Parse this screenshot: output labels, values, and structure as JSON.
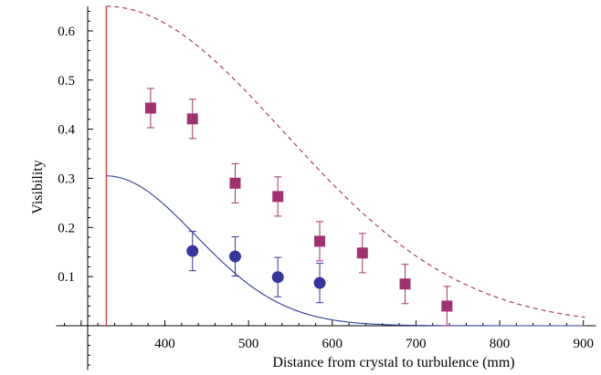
{
  "chart_data": {
    "type": "scatter",
    "title": "",
    "xlabel": "Distance from crystal to turbulence  (mm)",
    "ylabel": "Visibility",
    "xlim": [
      270,
      915
    ],
    "ylim": [
      -0.09,
      0.65
    ],
    "x_ticks": [
      400,
      500,
      600,
      700,
      800,
      900
    ],
    "y_ticks": [
      0.1,
      0.2,
      0.3,
      0.4,
      0.5,
      0.6
    ],
    "grid": false,
    "legend": "none",
    "vertical_line": {
      "x": 330,
      "color": "#e83a3a"
    },
    "curves": [
      {
        "style": "dashed",
        "color": "#a0305a",
        "kind": "gaussian",
        "x0": 330,
        "amplitude": 0.65,
        "sigma": 300,
        "x_range": [
          330,
          905
        ]
      },
      {
        "style": "solid",
        "color": "#2e3a9a",
        "kind": "gaussian",
        "x0": 330,
        "amplitude": 0.305,
        "sigma": 150,
        "x_range": [
          330,
          905
        ]
      }
    ],
    "series": [
      {
        "marker": "square",
        "color": "#9e3370",
        "x": [
          383,
          433,
          484,
          535,
          585,
          636,
          687,
          737
        ],
        "y": [
          0.443,
          0.421,
          0.29,
          0.263,
          0.172,
          0.148,
          0.085,
          0.04
        ],
        "err": [
          0.04,
          0.04,
          0.04,
          0.04,
          0.04,
          0.04,
          0.04,
          0.04
        ]
      },
      {
        "marker": "circle",
        "color": "#35359a",
        "x": [
          433,
          484,
          535,
          585
        ],
        "y": [
          0.152,
          0.141,
          0.099,
          0.087
        ],
        "err": [
          0.04,
          0.04,
          0.04,
          0.04
        ]
      }
    ]
  }
}
